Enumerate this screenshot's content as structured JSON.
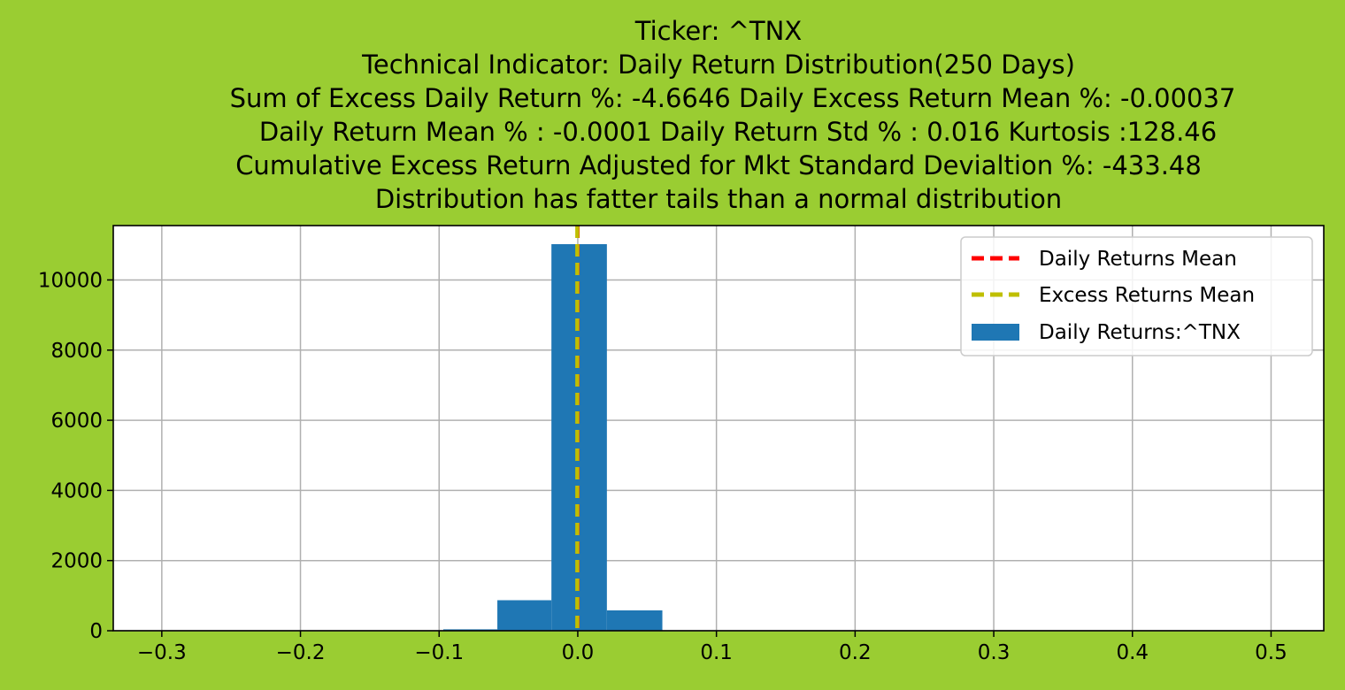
{
  "figure": {
    "background": "#9acd32"
  },
  "chart_data": {
    "type": "bar",
    "title_lines": [
      "Ticker: ^TNX",
      "Technical Indicator: Daily Return Distribution(250 Days)",
      "Sum of Excess Daily Return %: -4.6646   Daily Excess Return Mean %: -0.00037",
      "Daily Return Mean % : -0.0001    Daily Return Std % : 0.016  Kurtosis :128.46",
      "Cumulative Excess Return Adjusted for Mkt Standard Devialtion %: -433.48",
      "Distribution has fatter tails than a normal distribution"
    ],
    "xlim": [
      -0.335,
      0.538
    ],
    "ylim": [
      0,
      11550
    ],
    "grid": true,
    "legend_position": "top-right",
    "x_ticks": [
      -0.3,
      -0.2,
      -0.1,
      0.0,
      0.1,
      0.2,
      0.3,
      0.4,
      0.5
    ],
    "x_tick_labels": [
      "−0.3",
      "−0.2",
      "−0.1",
      "0.0",
      "0.1",
      "0.2",
      "0.3",
      "0.4",
      "0.5"
    ],
    "y_ticks": [
      0,
      2000,
      4000,
      6000,
      8000,
      10000
    ],
    "y_tick_labels": [
      "0",
      "2000",
      "4000",
      "6000",
      "8000",
      "10000"
    ],
    "histogram": {
      "name": "Daily Returns:^TNX",
      "color": "#1f77b4",
      "bins": [
        {
          "x0": -0.136,
          "x1": -0.097,
          "count": 3
        },
        {
          "x0": -0.097,
          "x1": -0.058,
          "count": 40
        },
        {
          "x0": -0.058,
          "x1": -0.019,
          "count": 870
        },
        {
          "x0": -0.019,
          "x1": 0.021,
          "count": 11020
        },
        {
          "x0": 0.021,
          "x1": 0.061,
          "count": 580
        },
        {
          "x0": 0.061,
          "x1": 0.1,
          "count": 8
        }
      ]
    },
    "vlines": [
      {
        "name": "Daily Returns Mean",
        "x": -0.0001,
        "color": "#ff0000"
      },
      {
        "name": "Excess Returns Mean",
        "x": -0.00037,
        "color": "#bfbf00"
      }
    ],
    "legend": [
      {
        "label": "Daily Returns Mean",
        "kind": "line",
        "color": "#ff0000"
      },
      {
        "label": "Excess Returns Mean",
        "kind": "line",
        "color": "#bfbf00"
      },
      {
        "label": "Daily Returns:^TNX",
        "kind": "patch",
        "color": "#1f77b4"
      }
    ]
  }
}
